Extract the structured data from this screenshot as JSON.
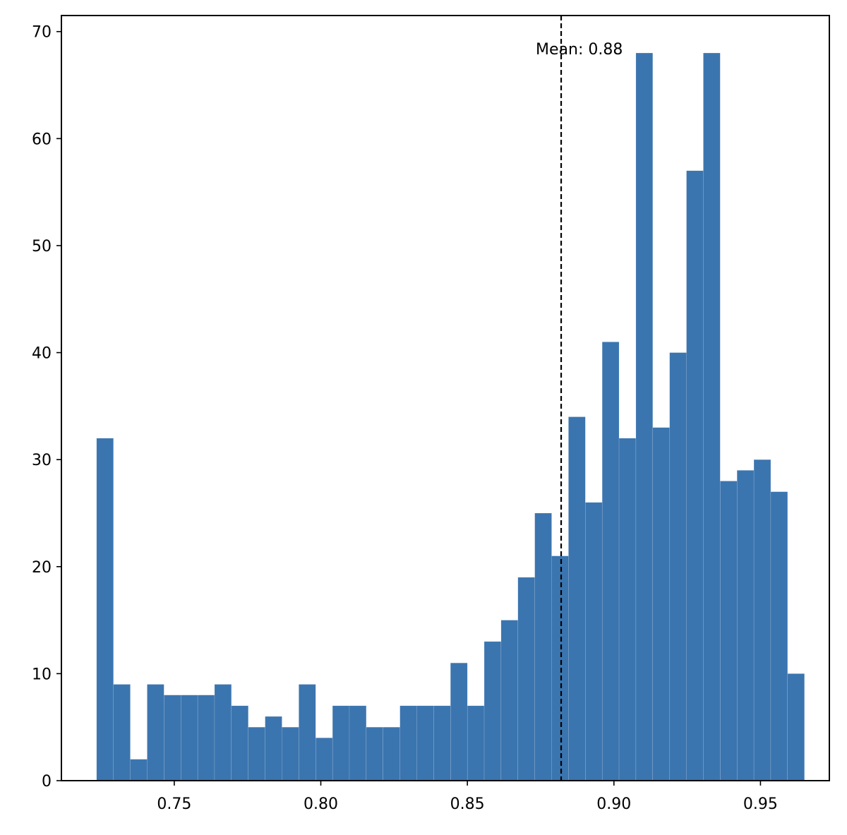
{
  "chart_data": {
    "type": "bar",
    "variant": "histogram",
    "title": "",
    "xlabel": "",
    "ylabel": "",
    "xlim": [
      0.7115,
      0.9735
    ],
    "ylim": [
      0,
      71.5
    ],
    "bin_start": 0.7235,
    "bin_width": 0.00575,
    "counts": [
      32,
      9,
      2,
      9,
      8,
      8,
      8,
      9,
      7,
      5,
      6,
      5,
      9,
      4,
      7,
      7,
      5,
      5,
      7,
      7,
      7,
      11,
      7,
      13,
      15,
      19,
      25,
      21,
      34,
      26,
      41,
      32,
      68,
      33,
      40,
      57,
      68,
      28,
      29,
      30,
      27,
      10
    ],
    "x_ticks": [
      {
        "value": 0.75,
        "label": "0.75"
      },
      {
        "value": 0.8,
        "label": "0.80"
      },
      {
        "value": 0.85,
        "label": "0.85"
      },
      {
        "value": 0.9,
        "label": "0.90"
      },
      {
        "value": 0.95,
        "label": "0.95"
      }
    ],
    "y_ticks": [
      {
        "value": 0,
        "label": "0"
      },
      {
        "value": 10,
        "label": "10"
      },
      {
        "value": 20,
        "label": "20"
      },
      {
        "value": 30,
        "label": "30"
      },
      {
        "value": 40,
        "label": "40"
      },
      {
        "value": 50,
        "label": "50"
      },
      {
        "value": 60,
        "label": "60"
      },
      {
        "value": 70,
        "label": "70"
      }
    ],
    "mean_line": {
      "value": 0.882,
      "label": "Mean: 0.88",
      "style": "dashed"
    },
    "grid": false,
    "legend": "none",
    "colors": {
      "bar": "#3b75af",
      "mean_line": "#000000",
      "axes": "#000000"
    }
  }
}
